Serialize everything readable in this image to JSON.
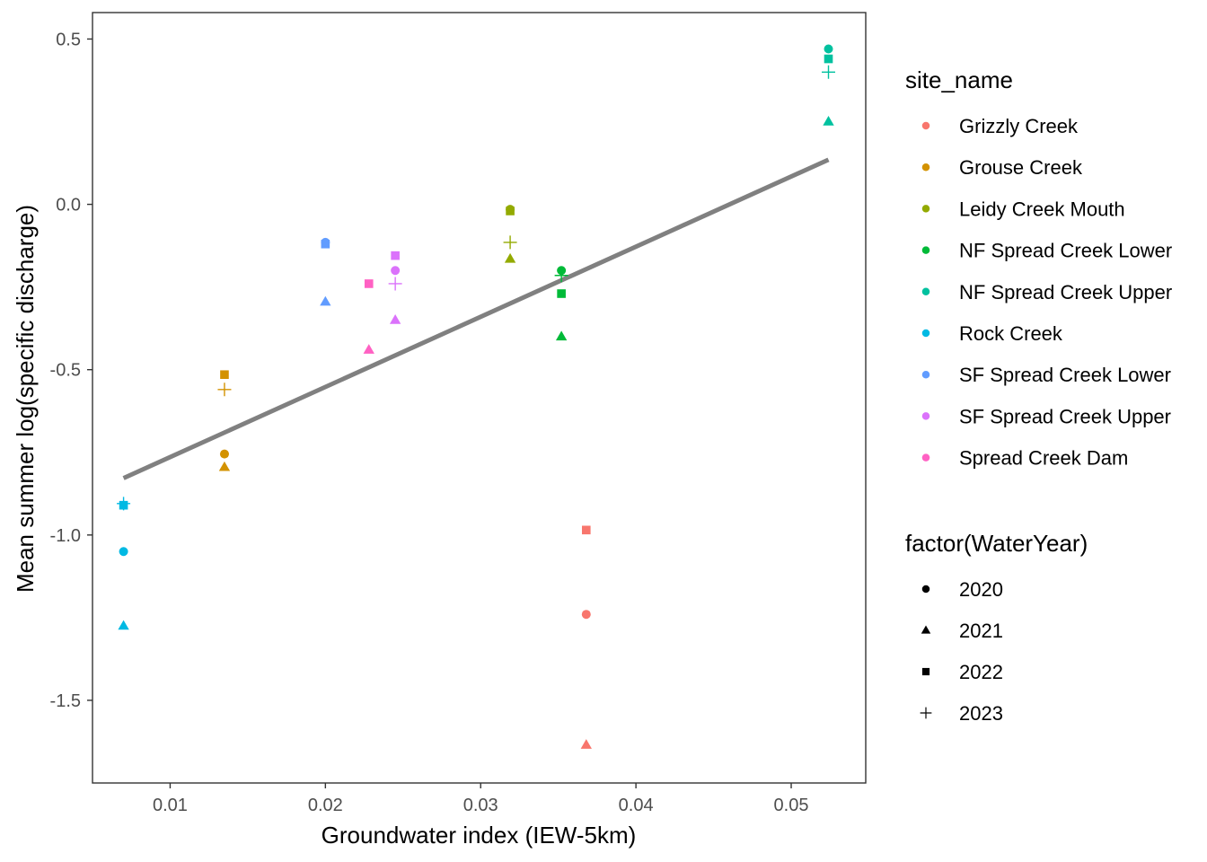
{
  "chart_data": {
    "type": "scatter",
    "xlabel": "Groundwater index (IEW-5km)",
    "ylabel": "Mean summer log(specific discharge)",
    "xlim": [
      0.005,
      0.0548
    ],
    "ylim": [
      -1.75,
      0.58
    ],
    "x_ticks": [
      0.01,
      0.02,
      0.03,
      0.04,
      0.05
    ],
    "x_tick_labels": [
      "0.01",
      "0.02",
      "0.03",
      "0.04",
      "0.05"
    ],
    "y_ticks": [
      0.5,
      0.0,
      -0.5,
      -1.0,
      -1.5
    ],
    "y_tick_labels": [
      "0.5",
      "0.0",
      "-0.5",
      "-1.0",
      "-1.5"
    ],
    "grid": false,
    "color_legend": {
      "title": "site_name",
      "entries": [
        {
          "name": "Grizzly Creek",
          "color": "#F8766D"
        },
        {
          "name": "Grouse Creek",
          "color": "#D39200"
        },
        {
          "name": "Leidy Creek Mouth",
          "color": "#93AA00"
        },
        {
          "name": "NF Spread Creek Lower",
          "color": "#00BA38"
        },
        {
          "name": "NF Spread Creek Upper",
          "color": "#00C19F"
        },
        {
          "name": "Rock Creek",
          "color": "#00B9E3"
        },
        {
          "name": "SF Spread Creek Lower",
          "color": "#619CFF"
        },
        {
          "name": "SF Spread Creek Upper",
          "color": "#DB72FB"
        },
        {
          "name": "Spread Creek Dam",
          "color": "#FF61C3"
        }
      ]
    },
    "shape_legend": {
      "title": "factor(WaterYear)",
      "entries": [
        {
          "name": "2020",
          "shape": "circle"
        },
        {
          "name": "2021",
          "shape": "triangle"
        },
        {
          "name": "2022",
          "shape": "square"
        },
        {
          "name": "2023",
          "shape": "plus"
        }
      ]
    },
    "trend_line": {
      "x": [
        0.007,
        0.0524
      ],
      "y": [
        -0.828,
        0.135
      ],
      "color": "#808080"
    },
    "points": [
      {
        "site": "Grizzly Creek",
        "year": "2020",
        "x": 0.0368,
        "y": -1.24
      },
      {
        "site": "Grizzly Creek",
        "year": "2021",
        "x": 0.0368,
        "y": -1.635
      },
      {
        "site": "Grizzly Creek",
        "year": "2022",
        "x": 0.0368,
        "y": -0.985
      },
      {
        "site": "Grouse Creek",
        "year": "2020",
        "x": 0.0135,
        "y": -0.755
      },
      {
        "site": "Grouse Creek",
        "year": "2021",
        "x": 0.0135,
        "y": -0.795
      },
      {
        "site": "Grouse Creek",
        "year": "2022",
        "x": 0.0135,
        "y": -0.515
      },
      {
        "site": "Grouse Creek",
        "year": "2023",
        "x": 0.0135,
        "y": -0.56
      },
      {
        "site": "Leidy Creek Mouth",
        "year": "2020",
        "x": 0.0319,
        "y": -0.015
      },
      {
        "site": "Leidy Creek Mouth",
        "year": "2021",
        "x": 0.0319,
        "y": -0.165
      },
      {
        "site": "Leidy Creek Mouth",
        "year": "2022",
        "x": 0.0319,
        "y": -0.02
      },
      {
        "site": "Leidy Creek Mouth",
        "year": "2023",
        "x": 0.0319,
        "y": -0.115
      },
      {
        "site": "NF Spread Creek Lower",
        "year": "2020",
        "x": 0.0352,
        "y": -0.2
      },
      {
        "site": "NF Spread Creek Lower",
        "year": "2021",
        "x": 0.0352,
        "y": -0.4
      },
      {
        "site": "NF Spread Creek Lower",
        "year": "2022",
        "x": 0.0352,
        "y": -0.27
      },
      {
        "site": "NF Spread Creek Lower",
        "year": "2023",
        "x": 0.0352,
        "y": -0.215
      },
      {
        "site": "NF Spread Creek Upper",
        "year": "2020",
        "x": 0.0524,
        "y": 0.47
      },
      {
        "site": "NF Spread Creek Upper",
        "year": "2021",
        "x": 0.0524,
        "y": 0.25
      },
      {
        "site": "NF Spread Creek Upper",
        "year": "2022",
        "x": 0.0524,
        "y": 0.44
      },
      {
        "site": "NF Spread Creek Upper",
        "year": "2023",
        "x": 0.0524,
        "y": 0.4
      },
      {
        "site": "Rock Creek",
        "year": "2020",
        "x": 0.007,
        "y": -1.05
      },
      {
        "site": "Rock Creek",
        "year": "2021",
        "x": 0.007,
        "y": -1.275
      },
      {
        "site": "Rock Creek",
        "year": "2022",
        "x": 0.007,
        "y": -0.91
      },
      {
        "site": "Rock Creek",
        "year": "2023",
        "x": 0.007,
        "y": -0.905
      },
      {
        "site": "SF Spread Creek Lower",
        "year": "2020",
        "x": 0.02,
        "y": -0.115
      },
      {
        "site": "SF Spread Creek Lower",
        "year": "2021",
        "x": 0.02,
        "y": -0.295
      },
      {
        "site": "SF Spread Creek Lower",
        "year": "2022",
        "x": 0.02,
        "y": -0.12
      },
      {
        "site": "SF Spread Creek Upper",
        "year": "2020",
        "x": 0.0245,
        "y": -0.2
      },
      {
        "site": "SF Spread Creek Upper",
        "year": "2021",
        "x": 0.0245,
        "y": -0.35
      },
      {
        "site": "SF Spread Creek Upper",
        "year": "2022",
        "x": 0.0245,
        "y": -0.155
      },
      {
        "site": "SF Spread Creek Upper",
        "year": "2023",
        "x": 0.0245,
        "y": -0.24
      },
      {
        "site": "Spread Creek Dam",
        "year": "2021",
        "x": 0.0228,
        "y": -0.44
      },
      {
        "site": "Spread Creek Dam",
        "year": "2022",
        "x": 0.0228,
        "y": -0.24
      }
    ]
  }
}
